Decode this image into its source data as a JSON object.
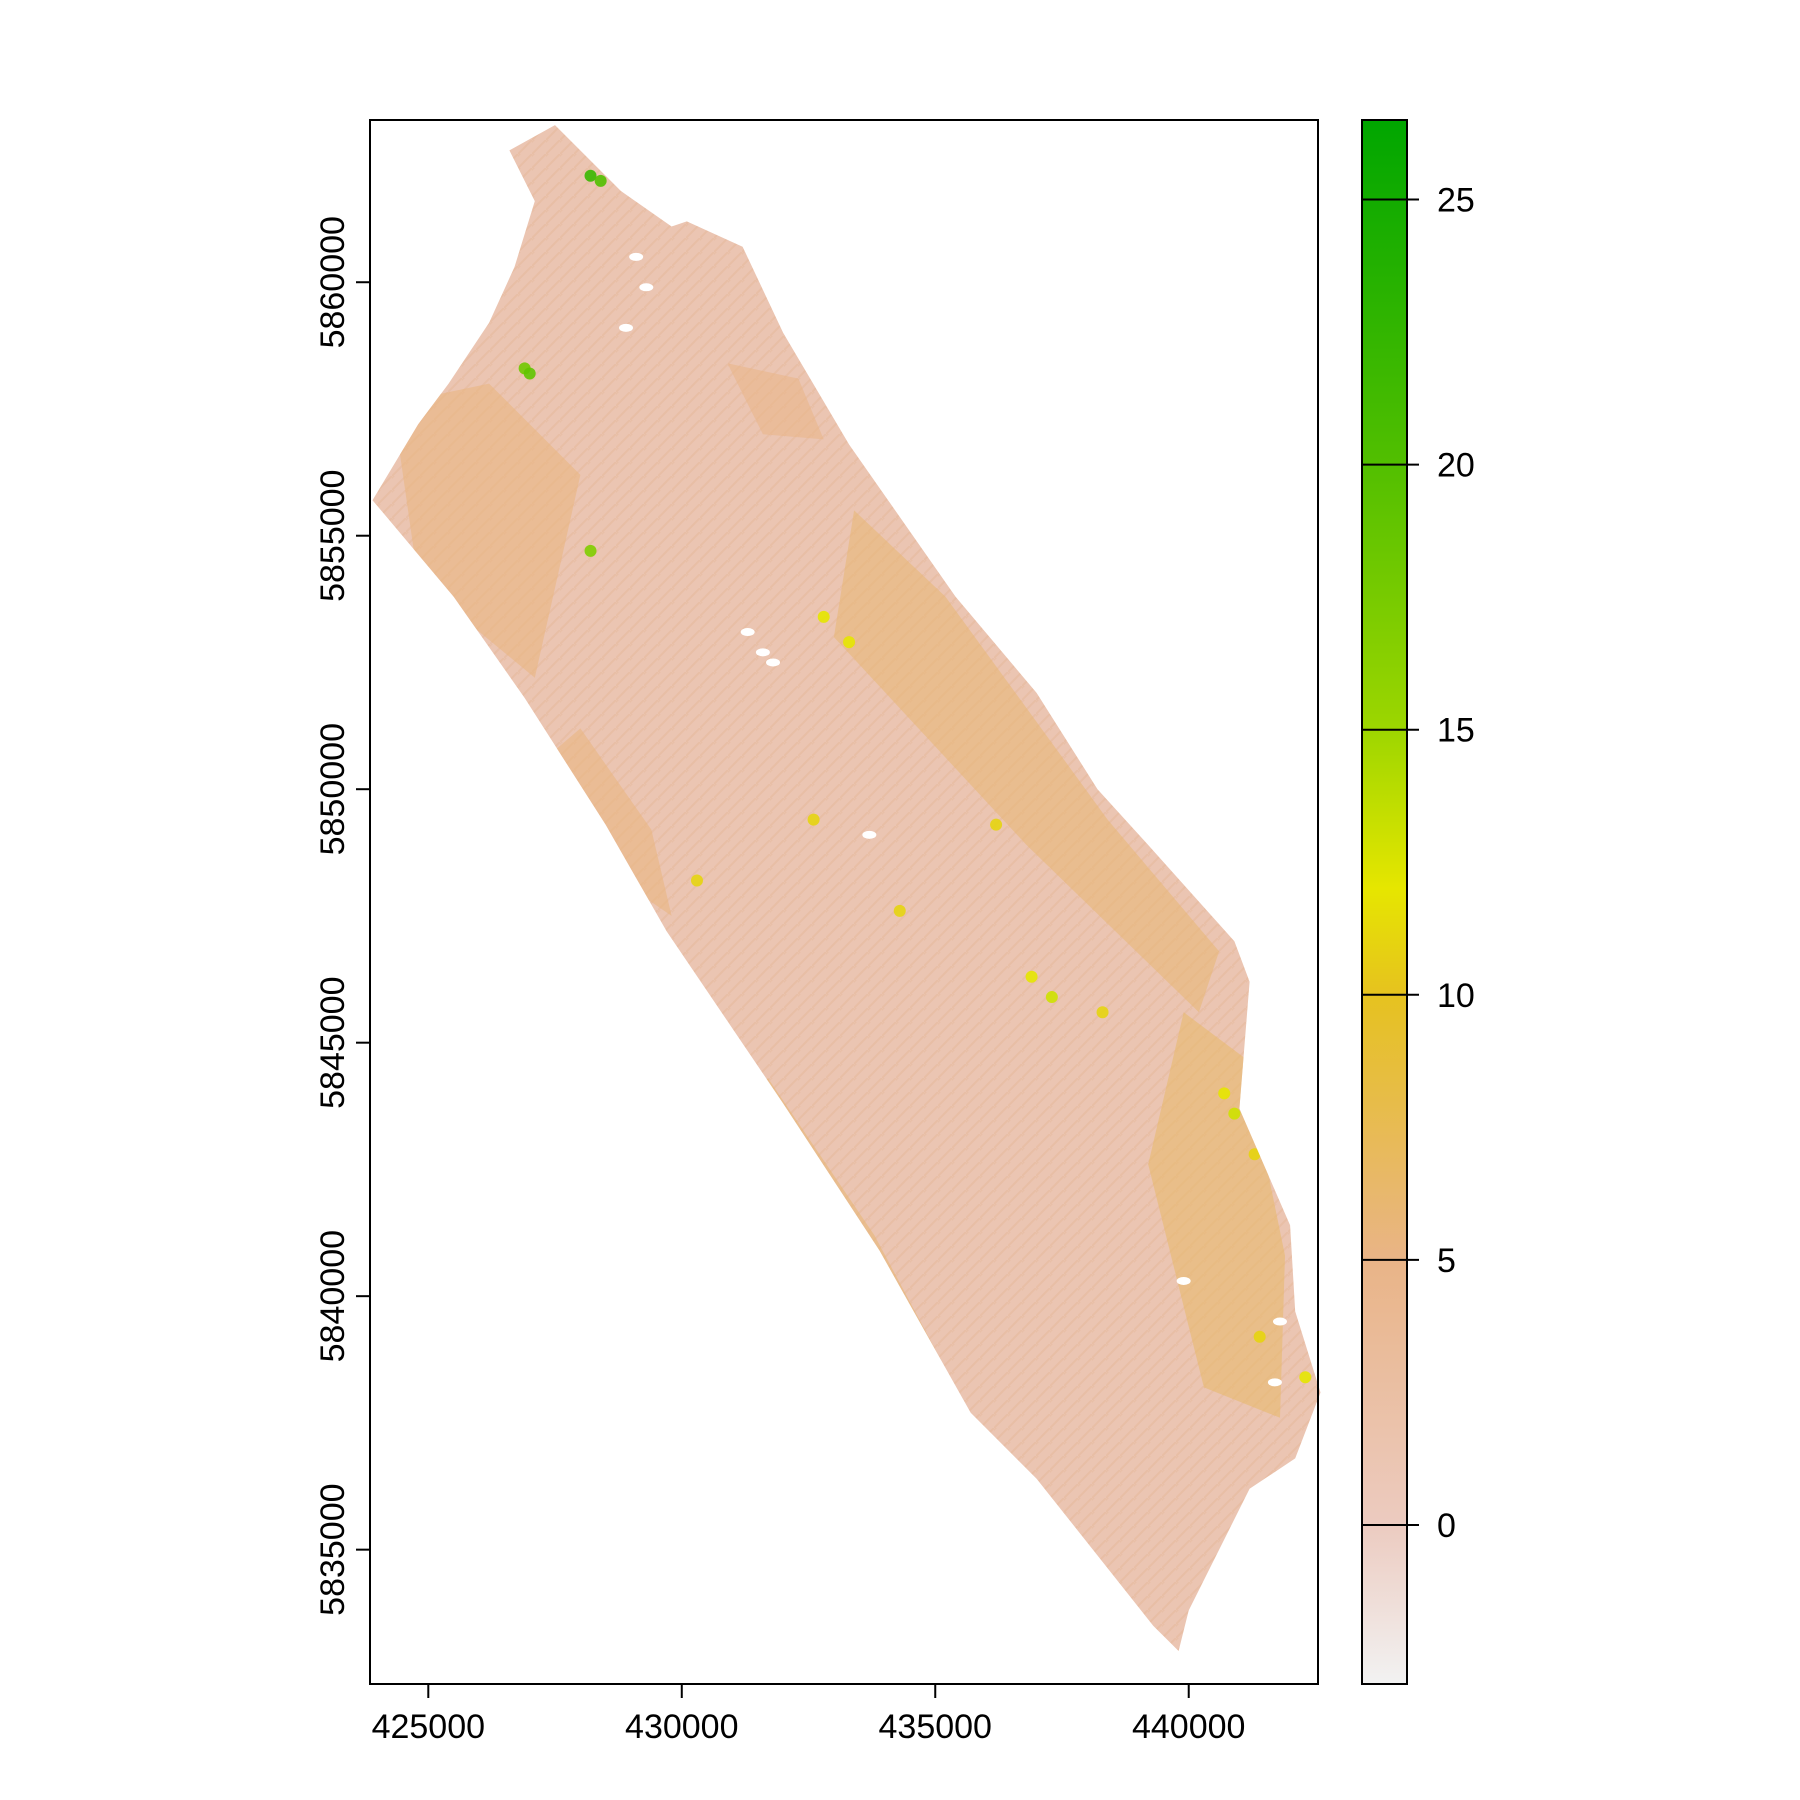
{
  "chart_data": {
    "type": "heatmap",
    "title": "",
    "xlabel": "",
    "ylabel": "",
    "xlim": [
      423850,
      442550
    ],
    "ylim": [
      5832350,
      5863200
    ],
    "x_ticks": [
      {
        "value": 425000,
        "label": "425000"
      },
      {
        "value": 430000,
        "label": "430000"
      },
      {
        "value": 435000,
        "label": "435000"
      },
      {
        "value": 440000,
        "label": "440000"
      }
    ],
    "y_ticks": [
      {
        "value": 5835000,
        "label": "5835000"
      },
      {
        "value": 5840000,
        "label": "5840000"
      },
      {
        "value": 5845000,
        "label": "5845000"
      },
      {
        "value": 5850000,
        "label": "5850000"
      },
      {
        "value": 5855000,
        "label": "5855000"
      },
      {
        "value": 5860000,
        "label": "5860000"
      }
    ],
    "grid": false,
    "legend": {
      "placement": "right",
      "range": [
        -3,
        26.5
      ],
      "ticks": [
        {
          "value": 0,
          "label": "0"
        },
        {
          "value": 5,
          "label": "5"
        },
        {
          "value": 10,
          "label": "10"
        },
        {
          "value": 15,
          "label": "15"
        },
        {
          "value": 20,
          "label": "20"
        },
        {
          "value": 25,
          "label": "25"
        }
      ],
      "color_stops": [
        {
          "value": -3,
          "color": "#f2f2f2"
        },
        {
          "value": 0,
          "color": "#eccbc0"
        },
        {
          "value": 5,
          "color": "#e9b487"
        },
        {
          "value": 10,
          "color": "#e6c21f"
        },
        {
          "value": 12,
          "color": "#e6e600"
        },
        {
          "value": 15,
          "color": "#9dd600"
        },
        {
          "value": 20,
          "color": "#52bf00"
        },
        {
          "value": 26.5,
          "color": "#00a600"
        }
      ]
    },
    "raster_outline": [
      [
        427500,
        5863100
      ],
      [
        428800,
        5861800
      ],
      [
        429800,
        5861100
      ],
      [
        430100,
        5861200
      ],
      [
        431200,
        5860700
      ],
      [
        432000,
        5859000
      ],
      [
        433300,
        5856800
      ],
      [
        435400,
        5853800
      ],
      [
        437000,
        5851900
      ],
      [
        438200,
        5850000
      ],
      [
        439200,
        5848900
      ],
      [
        440900,
        5847000
      ],
      [
        441200,
        5846200
      ],
      [
        441000,
        5843700
      ],
      [
        442000,
        5841400
      ],
      [
        442100,
        5839700
      ],
      [
        442600,
        5838100
      ],
      [
        442100,
        5836800
      ],
      [
        441200,
        5836200
      ],
      [
        440000,
        5833800
      ],
      [
        439800,
        5833000
      ],
      [
        439300,
        5833500
      ],
      [
        437000,
        5836400
      ],
      [
        435700,
        5837700
      ],
      [
        433900,
        5840900
      ],
      [
        432000,
        5843800
      ],
      [
        429700,
        5847200
      ],
      [
        428500,
        5849300
      ],
      [
        426900,
        5851800
      ],
      [
        425500,
        5853800
      ],
      [
        423900,
        5855700
      ],
      [
        424800,
        5857200
      ],
      [
        425400,
        5858000
      ],
      [
        426200,
        5859200
      ],
      [
        426700,
        5860300
      ],
      [
        427100,
        5861600
      ],
      [
        426600,
        5862600
      ]
    ],
    "warm_patches": [
      {
        "points": [
          [
            424300,
            5857600
          ],
          [
            426200,
            5858000
          ],
          [
            428000,
            5856200
          ],
          [
            427100,
            5852200
          ],
          [
            424800,
            5854100
          ]
        ],
        "value": 5.5
      },
      {
        "points": [
          [
            433400,
            5855500
          ],
          [
            435200,
            5853800
          ],
          [
            438400,
            5849400
          ],
          [
            440600,
            5846800
          ],
          [
            440200,
            5845600
          ],
          [
            436800,
            5848900
          ],
          [
            433000,
            5853000
          ]
        ],
        "value": 6
      },
      {
        "points": [
          [
            439900,
            5845600
          ],
          [
            441100,
            5844700
          ],
          [
            441900,
            5840800
          ],
          [
            441800,
            5837600
          ],
          [
            440300,
            5838200
          ],
          [
            439200,
            5842600
          ]
        ],
        "value": 6.5
      },
      {
        "points": [
          [
            431700,
            5844300
          ],
          [
            433800,
            5841200
          ],
          [
            435400,
            5838200
          ],
          [
            434500,
            5838000
          ],
          [
            432600,
            5840600
          ],
          [
            430700,
            5843700
          ]
        ],
        "value": 6
      },
      {
        "points": [
          [
            428000,
            5851200
          ],
          [
            429400,
            5849200
          ],
          [
            429800,
            5847500
          ],
          [
            428200,
            5848600
          ],
          [
            427300,
            5850600
          ]
        ],
        "value": 5.5
      },
      {
        "points": [
          [
            430900,
            5858400
          ],
          [
            432300,
            5858100
          ],
          [
            432800,
            5856900
          ],
          [
            431600,
            5857000
          ]
        ],
        "value": 5
      }
    ],
    "hotspots": [
      {
        "x": 432800,
        "y": 5853400,
        "value": 12
      },
      {
        "x": 433300,
        "y": 5852900,
        "value": 12
      },
      {
        "x": 436900,
        "y": 5846300,
        "value": 12
      },
      {
        "x": 437300,
        "y": 5845900,
        "value": 13
      },
      {
        "x": 438300,
        "y": 5845600,
        "value": 11
      },
      {
        "x": 440700,
        "y": 5844000,
        "value": 12
      },
      {
        "x": 440900,
        "y": 5843600,
        "value": 13
      },
      {
        "x": 441300,
        "y": 5842800,
        "value": 11
      },
      {
        "x": 426900,
        "y": 5858300,
        "value": 18
      },
      {
        "x": 427000,
        "y": 5858200,
        "value": 19
      },
      {
        "x": 428200,
        "y": 5862100,
        "value": 22
      },
      {
        "x": 428400,
        "y": 5862000,
        "value": 20
      },
      {
        "x": 428200,
        "y": 5854700,
        "value": 17
      },
      {
        "x": 432600,
        "y": 5849400,
        "value": 11
      },
      {
        "x": 434300,
        "y": 5847600,
        "value": 11
      },
      {
        "x": 436200,
        "y": 5849300,
        "value": 11
      },
      {
        "x": 442300,
        "y": 5838400,
        "value": 12
      },
      {
        "x": 441400,
        "y": 5839200,
        "value": 11
      },
      {
        "x": 430300,
        "y": 5848200,
        "value": 11
      }
    ],
    "nodata_holes": [
      {
        "x": 428900,
        "y": 5859100
      },
      {
        "x": 429100,
        "y": 5860500
      },
      {
        "x": 429300,
        "y": 5859900
      },
      {
        "x": 431300,
        "y": 5853100
      },
      {
        "x": 431600,
        "y": 5852700
      },
      {
        "x": 431800,
        "y": 5852500
      },
      {
        "x": 433700,
        "y": 5849100
      },
      {
        "x": 439900,
        "y": 5840300
      },
      {
        "x": 441800,
        "y": 5839500
      },
      {
        "x": 441700,
        "y": 5838300
      }
    ]
  }
}
